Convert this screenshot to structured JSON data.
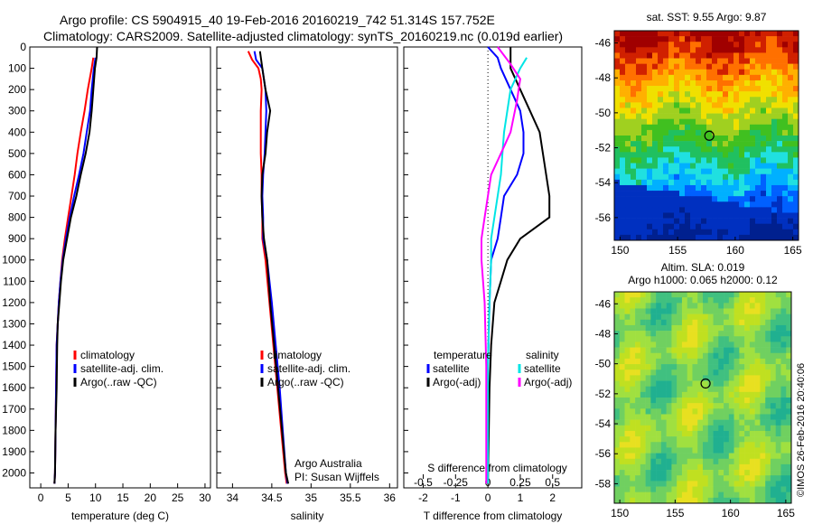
{
  "figure": {
    "title_line1": "Argo profile: CS 5904915_40 19-Feb-2016 20160219_742 51.314S 157.752E",
    "title_line2": "Climatology: CARS2009. Satellite-adjusted climatology: synTS_20160219.nc (0.019d earlier)",
    "credit": "Argo Australia",
    "pi": "PI: Susan Wijffels",
    "stamp": "©IMOS 26-Feb-2016 20:40:06"
  },
  "chart_data": [
    {
      "id": "temperature",
      "type": "line",
      "xlabel": "temperature (deg C)",
      "xlim": [
        -2,
        31
      ],
      "xticks": [
        0,
        5,
        10,
        15,
        20,
        25,
        30
      ],
      "ylim": [
        2070,
        0
      ],
      "yticks": [
        0,
        100,
        200,
        300,
        400,
        500,
        600,
        700,
        800,
        900,
        1000,
        1100,
        1200,
        1300,
        1400,
        1500,
        1600,
        1700,
        1800,
        1900,
        2000
      ],
      "legend": [
        "climatology",
        "satellite-adj. clim.",
        "Argo(..raw -QC)"
      ],
      "series": [
        {
          "name": "climatology",
          "color": "#ff0000",
          "points": [
            [
              9.6,
              50
            ],
            [
              9.3,
              100
            ],
            [
              8.6,
              200
            ],
            [
              8.0,
              300
            ],
            [
              7.3,
              400
            ],
            [
              6.7,
              500
            ],
            [
              6.2,
              600
            ],
            [
              5.6,
              700
            ],
            [
              5.0,
              800
            ],
            [
              4.4,
              900
            ],
            [
              3.9,
              1000
            ],
            [
              3.6,
              1100
            ],
            [
              3.3,
              1200
            ],
            [
              3.1,
              1300
            ],
            [
              2.9,
              1400
            ],
            [
              2.8,
              1600
            ],
            [
              2.7,
              1800
            ],
            [
              2.6,
              2000
            ],
            [
              2.5,
              2050
            ]
          ]
        },
        {
          "name": "satellite-adj. clim.",
          "color": "#0000ff",
          "points": [
            [
              10.0,
              50
            ],
            [
              9.7,
              100
            ],
            [
              9.3,
              200
            ],
            [
              9.0,
              300
            ],
            [
              8.4,
              400
            ],
            [
              7.8,
              500
            ],
            [
              7.0,
              600
            ],
            [
              6.1,
              700
            ],
            [
              5.3,
              800
            ],
            [
              4.6,
              900
            ],
            [
              4.0,
              1000
            ],
            [
              3.6,
              1100
            ],
            [
              3.3,
              1200
            ],
            [
              3.1,
              1300
            ],
            [
              2.9,
              1400
            ],
            [
              2.8,
              1600
            ],
            [
              2.7,
              1800
            ],
            [
              2.6,
              2000
            ],
            [
              2.5,
              2050
            ]
          ]
        },
        {
          "name": "Argo(..raw -QC)",
          "color": "#000000",
          "points": [
            [
              10.3,
              0
            ],
            [
              10.2,
              50
            ],
            [
              9.9,
              100
            ],
            [
              9.6,
              200
            ],
            [
              9.3,
              300
            ],
            [
              8.9,
              400
            ],
            [
              8.2,
              500
            ],
            [
              7.3,
              600
            ],
            [
              6.5,
              700
            ],
            [
              5.5,
              800
            ],
            [
              4.8,
              900
            ],
            [
              4.1,
              1000
            ],
            [
              3.7,
              1100
            ],
            [
              3.4,
              1200
            ],
            [
              3.1,
              1300
            ],
            [
              3.0,
              1400
            ],
            [
              2.9,
              1600
            ],
            [
              2.7,
              1800
            ],
            [
              2.6,
              2000
            ],
            [
              2.5,
              2050
            ]
          ]
        }
      ]
    },
    {
      "id": "salinity",
      "type": "line",
      "xlabel": "salinity",
      "xlim": [
        33.8,
        36.1
      ],
      "xticks": [
        34,
        34.5,
        35,
        35.5,
        36
      ],
      "ylim": [
        2070,
        0
      ],
      "legend": [
        "climatology",
        "satellite-adj. clim.",
        "Argo(..raw -QC)"
      ],
      "series": [
        {
          "name": "climatology",
          "color": "#ff0000",
          "points": [
            [
              34.2,
              20
            ],
            [
              34.25,
              60
            ],
            [
              34.33,
              100
            ],
            [
              34.36,
              150
            ],
            [
              34.37,
              200
            ],
            [
              34.36,
              300
            ],
            [
              34.36,
              400
            ],
            [
              34.36,
              500
            ],
            [
              34.37,
              600
            ],
            [
              34.37,
              700
            ],
            [
              34.38,
              800
            ],
            [
              34.38,
              900
            ],
            [
              34.42,
              1000
            ],
            [
              34.47,
              1200
            ],
            [
              34.52,
              1400
            ],
            [
              34.57,
              1600
            ],
            [
              34.62,
              1800
            ],
            [
              34.67,
              2000
            ],
            [
              34.69,
              2050
            ]
          ]
        },
        {
          "name": "satellite-adj. clim.",
          "color": "#0000ff",
          "points": [
            [
              34.28,
              20
            ],
            [
              34.3,
              60
            ],
            [
              34.38,
              100
            ],
            [
              34.42,
              200
            ],
            [
              34.43,
              300
            ],
            [
              34.42,
              400
            ],
            [
              34.41,
              500
            ],
            [
              34.39,
              600
            ],
            [
              34.38,
              700
            ],
            [
              34.39,
              800
            ],
            [
              34.39,
              900
            ],
            [
              34.44,
              1000
            ],
            [
              34.5,
              1200
            ],
            [
              34.55,
              1400
            ],
            [
              34.6,
              1600
            ],
            [
              34.64,
              1800
            ],
            [
              34.68,
              2000
            ],
            [
              34.7,
              2050
            ]
          ]
        },
        {
          "name": "Argo(..raw -QC)",
          "color": "#000000",
          "points": [
            [
              34.35,
              20
            ],
            [
              34.38,
              100
            ],
            [
              34.42,
              200
            ],
            [
              34.48,
              300
            ],
            [
              34.44,
              400
            ],
            [
              34.42,
              500
            ],
            [
              34.38,
              600
            ],
            [
              34.37,
              700
            ],
            [
              34.38,
              800
            ],
            [
              34.4,
              900
            ],
            [
              34.44,
              1000
            ],
            [
              34.48,
              1200
            ],
            [
              34.53,
              1400
            ],
            [
              34.58,
              1600
            ],
            [
              34.63,
              1800
            ],
            [
              34.68,
              2000
            ],
            [
              34.71,
              2050
            ]
          ]
        }
      ]
    },
    {
      "id": "difference",
      "type": "line",
      "xlabel": "T difference from climatology",
      "xlabel_top": "S difference from climatology",
      "xlim": [
        -2.6,
        2.9
      ],
      "xticks": [
        -2,
        -1,
        0,
        1,
        2
      ],
      "xticks_top": [
        -0.5,
        -0.25,
        0,
        0.25,
        0.5
      ],
      "ylim": [
        2070,
        0
      ],
      "legend_headers": [
        "temperature",
        "salinity"
      ],
      "legend": [
        "satellite",
        "Argo(-adj)",
        "satellite",
        "Argo(-adj)"
      ],
      "series": [
        {
          "name": "satellite",
          "color": "#0000ff",
          "points": [
            [
              0.0,
              0
            ],
            [
              0.3,
              50
            ],
            [
              0.4,
              100
            ],
            [
              0.7,
              200
            ],
            [
              1.0,
              300
            ],
            [
              1.1,
              400
            ],
            [
              1.1,
              500
            ],
            [
              0.9,
              600
            ],
            [
              0.5,
              700
            ],
            [
              0.4,
              800
            ],
            [
              0.3,
              900
            ],
            [
              0.1,
              1000
            ],
            [
              0.05,
              1200
            ],
            [
              0.0,
              1500
            ],
            [
              0.0,
              2050
            ]
          ]
        },
        {
          "name": "Argo(-adj)",
          "color": "#000000",
          "points": [
            [
              0.7,
              0
            ],
            [
              0.7,
              100
            ],
            [
              1.0,
              200
            ],
            [
              1.3,
              300
            ],
            [
              1.6,
              400
            ],
            [
              1.7,
              500
            ],
            [
              1.8,
              600
            ],
            [
              1.9,
              700
            ],
            [
              1.9,
              800
            ],
            [
              1.0,
              900
            ],
            [
              0.6,
              1000
            ],
            [
              0.4,
              1100
            ],
            [
              0.2,
              1200
            ],
            [
              0.1,
              1400
            ],
            [
              0.05,
              1600
            ],
            [
              0.0,
              2050
            ]
          ]
        },
        {
          "name": "satellite",
          "color": "#00e5e5",
          "points": [
            [
              1.2,
              50
            ],
            [
              1.0,
              100
            ],
            [
              0.7,
              200
            ],
            [
              0.6,
              300
            ],
            [
              0.5,
              400
            ],
            [
              0.45,
              500
            ],
            [
              0.4,
              600
            ],
            [
              0.3,
              700
            ],
            [
              0.2,
              800
            ],
            [
              0.1,
              900
            ],
            [
              0.1,
              1000
            ],
            [
              0.05,
              1200
            ],
            [
              0.0,
              1500
            ],
            [
              0.0,
              2050
            ]
          ]
        },
        {
          "name": "Argo(-adj)",
          "color": "#ff00ff",
          "points": [
            [
              0.3,
              0
            ],
            [
              0.7,
              80
            ],
            [
              1.0,
              150
            ],
            [
              0.9,
              250
            ],
            [
              0.7,
              400
            ],
            [
              0.4,
              500
            ],
            [
              0.1,
              600
            ],
            [
              0.0,
              700
            ],
            [
              -0.1,
              800
            ],
            [
              -0.2,
              900
            ],
            [
              -0.2,
              1000
            ],
            [
              -0.1,
              1200
            ],
            [
              -0.05,
              1500
            ],
            [
              -0.05,
              2050
            ]
          ]
        }
      ]
    },
    {
      "id": "sst_map",
      "type": "heatmap",
      "title": "sat. SST: 9.55  Argo: 9.87",
      "xticks": [
        150,
        155,
        160,
        165
      ],
      "yticks": [
        -46,
        -48,
        -50,
        -52,
        -54,
        -56
      ],
      "xlim": [
        149.5,
        165.5
      ],
      "ylim": [
        -57.3,
        -45.3
      ],
      "marker": {
        "lon": 157.752,
        "lat": -51.314
      }
    },
    {
      "id": "sla_map",
      "type": "heatmap",
      "title": "Altim. SLA: 0.019",
      "subtitle": "Argo h1000: 0.065 h2000: 0.12",
      "xticks": [
        150,
        155,
        160,
        165
      ],
      "yticks": [
        -46,
        -48,
        -50,
        -52,
        -54,
        -56,
        -58
      ],
      "xlim": [
        149.5,
        165.5
      ],
      "ylim": [
        -59.3,
        -45.2
      ],
      "marker": {
        "lon": 157.752,
        "lat": -51.314
      }
    }
  ]
}
